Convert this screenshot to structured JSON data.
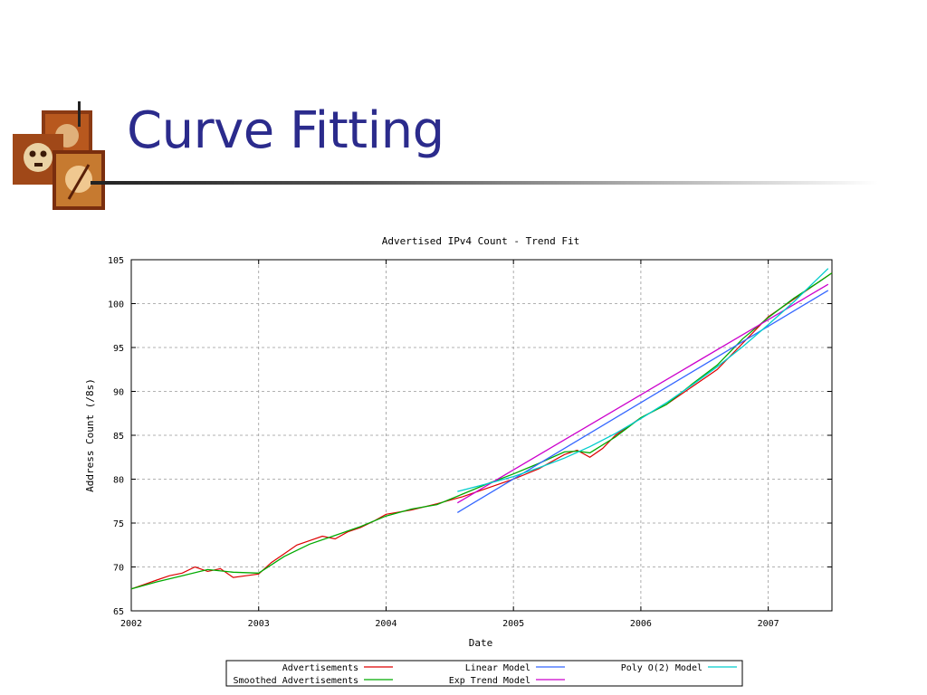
{
  "slide": {
    "title": "Curve Fitting"
  },
  "colors": {
    "title": "#2b2b8c",
    "advertisements": "#dd0000",
    "smoothed": "#00aa00",
    "linear": "#3366ff",
    "exp": "#cc00cc",
    "poly": "#00cccc"
  },
  "chart_data": {
    "type": "line",
    "title": "Advertised IPv4 Count - Trend Fit",
    "xlabel": "Date",
    "ylabel": "Address Count (/8s)",
    "xlim": [
      2002,
      2007.5
    ],
    "ylim": [
      65,
      105
    ],
    "xticks": [
      "2002",
      "2003",
      "2004",
      "2005",
      "2006",
      "2007"
    ],
    "yticks": [
      "65",
      "70",
      "75",
      "80",
      "85",
      "90",
      "95",
      "100",
      "105"
    ],
    "grid": true,
    "legend_position": "bottom",
    "legend": [
      "Advertisements",
      "Smoothed Advertisements",
      "Linear Model",
      "Exp Trend Model",
      "Poly O(2) Model"
    ],
    "series": [
      {
        "name": "Advertisements",
        "x": [
          2002.0,
          2002.1,
          2002.2,
          2002.3,
          2002.4,
          2002.5,
          2002.6,
          2002.7,
          2002.8,
          2002.9,
          2003.0,
          2003.1,
          2003.2,
          2003.3,
          2003.4,
          2003.5,
          2003.6,
          2003.7,
          2003.8,
          2003.9,
          2004.0,
          2004.2,
          2004.4,
          2004.6,
          2004.8,
          2005.0,
          2005.2,
          2005.4,
          2005.5,
          2005.6,
          2005.7,
          2005.8,
          2006.0,
          2006.2,
          2006.4,
          2006.6,
          2006.8,
          2007.0,
          2007.2,
          2007.4,
          2007.5
        ],
        "y": [
          67.5,
          68.0,
          68.5,
          69.0,
          69.3,
          70.0,
          69.5,
          69.8,
          68.8,
          69.0,
          69.2,
          70.5,
          71.5,
          72.5,
          73.0,
          73.5,
          73.2,
          74.0,
          74.5,
          75.2,
          76.0,
          76.5,
          77.2,
          78.0,
          79.0,
          80.0,
          81.2,
          82.8,
          83.3,
          82.5,
          83.5,
          85.0,
          87.0,
          88.5,
          90.5,
          92.5,
          95.5,
          98.5,
          100.5,
          102.5,
          103.5
        ]
      },
      {
        "name": "Smoothed Advertisements",
        "x": [
          2002.0,
          2002.2,
          2002.4,
          2002.6,
          2002.8,
          2003.0,
          2003.2,
          2003.4,
          2003.6,
          2003.8,
          2004.0,
          2004.2,
          2004.4,
          2004.6,
          2004.8,
          2005.0,
          2005.2,
          2005.4,
          2005.5,
          2005.6,
          2005.8,
          2006.0,
          2006.2,
          2006.4,
          2006.6,
          2006.8,
          2007.0,
          2007.2,
          2007.4,
          2007.5
        ],
        "y": [
          67.5,
          68.3,
          69.0,
          69.7,
          69.4,
          69.3,
          71.2,
          72.6,
          73.6,
          74.6,
          75.8,
          76.6,
          77.1,
          78.3,
          79.5,
          80.6,
          81.8,
          83.1,
          83.2,
          83.0,
          84.8,
          87.0,
          88.5,
          90.8,
          93.0,
          96.0,
          98.4,
          100.6,
          102.5,
          103.5
        ]
      },
      {
        "name": "Linear Model",
        "x": [
          2004.56,
          2007.47
        ],
        "y": [
          76.2,
          101.5
        ]
      },
      {
        "name": "Exp Trend Model",
        "x": [
          2004.56,
          2007.47
        ],
        "y": [
          77.3,
          102.2
        ]
      },
      {
        "name": "Poly O(2) Model",
        "x": [
          2004.56,
          2004.8,
          2005.0,
          2005.2,
          2005.4,
          2005.6,
          2005.8,
          2006.0,
          2006.2,
          2006.4,
          2006.6,
          2006.8,
          2007.0,
          2007.2,
          2007.47
        ],
        "y": [
          78.6,
          79.5,
          80.3,
          81.3,
          82.4,
          83.7,
          85.2,
          86.9,
          88.7,
          90.7,
          92.8,
          95.1,
          97.6,
          100.2,
          104.0
        ]
      }
    ]
  }
}
